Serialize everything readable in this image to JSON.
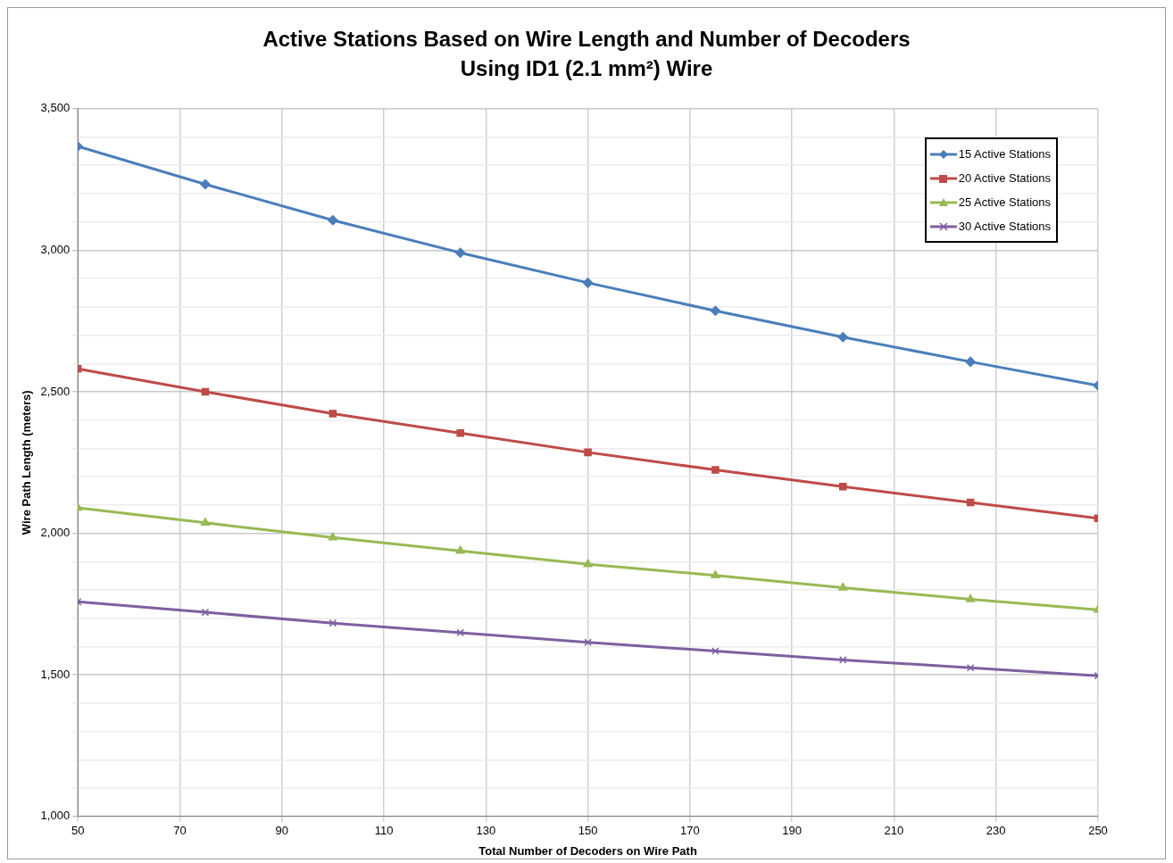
{
  "chart_data": {
    "type": "line",
    "title": "Active Stations Based on Wire Length and Number of Decoders",
    "subtitle": "Using ID1 (2.1 mm²) Wire",
    "xlabel": "Total Number of Decoders on Wire Path",
    "ylabel": "Wire Path Length (meters)",
    "x": [
      50,
      75,
      100,
      125,
      150,
      175,
      200,
      225,
      250
    ],
    "series": [
      {
        "name": "15 Active Stations",
        "color": "#4a7ebb",
        "marker": "diamond",
        "values": [
          3367,
          3233,
          3106,
          2991,
          2885,
          2786,
          2693,
          2606,
          2522
        ]
      },
      {
        "name": "20 Active Stations",
        "color": "#be4b48",
        "marker": "square",
        "values": [
          2581,
          2500,
          2423,
          2354,
          2286,
          2224,
          2165,
          2109,
          2053
        ]
      },
      {
        "name": "25 Active Stations",
        "color": "#98b954",
        "marker": "triangle",
        "values": [
          2090,
          2037,
          1985,
          1938,
          1891,
          1851,
          1808,
          1767,
          1730
        ]
      },
      {
        "name": "30 Active Stations",
        "color": "#7d60a0",
        "marker": "cross",
        "values": [
          1758,
          1721,
          1683,
          1649,
          1615,
          1584,
          1553,
          1525,
          1497
        ]
      }
    ],
    "xlim": [
      50,
      250
    ],
    "xticks": [
      50,
      70,
      90,
      110,
      130,
      150,
      170,
      190,
      210,
      230,
      250
    ],
    "ylim": [
      1000,
      3500
    ],
    "yticks": [
      {
        "value": 1000,
        "label": "1,000"
      },
      {
        "value": 1100,
        "label": null
      },
      {
        "value": 1200,
        "label": null
      },
      {
        "value": 1300,
        "label": null
      },
      {
        "value": 1400,
        "label": null
      },
      {
        "value": 1500,
        "label": "1,500"
      },
      {
        "value": 1600,
        "label": null
      },
      {
        "value": 1700,
        "label": null
      },
      {
        "value": 1800,
        "label": null
      },
      {
        "value": 1900,
        "label": null
      },
      {
        "value": 2000,
        "label": "2,000"
      },
      {
        "value": 2100,
        "label": null
      },
      {
        "value": 2200,
        "label": null
      },
      {
        "value": 2300,
        "label": null
      },
      {
        "value": 2400,
        "label": null
      },
      {
        "value": 2500,
        "label": "2,500"
      },
      {
        "value": 2600,
        "label": null
      },
      {
        "value": 2700,
        "label": null
      },
      {
        "value": 2800,
        "label": null
      },
      {
        "value": 2900,
        "label": null
      },
      {
        "value": 3000,
        "label": "3,000"
      },
      {
        "value": 3100,
        "label": null
      },
      {
        "value": 3200,
        "label": null
      },
      {
        "value": 3300,
        "label": null
      },
      {
        "value": 3400,
        "label": null
      },
      {
        "value": 3500,
        "label": "3,500"
      }
    ],
    "grid": true,
    "legend": "top right",
    "line_style": "solid"
  }
}
